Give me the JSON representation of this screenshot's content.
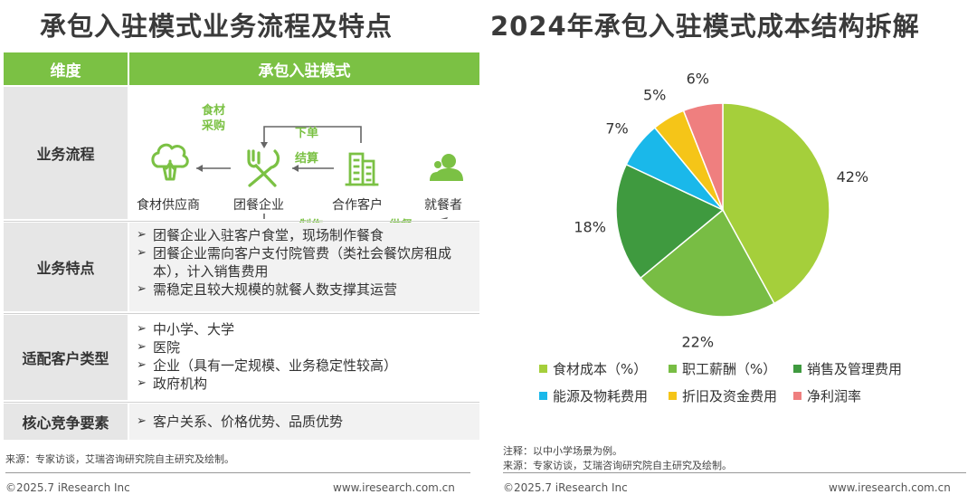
{
  "left_title": "承包入驻模式业务流程及特点",
  "right_title": "2024年承包入驻模式成本结构拆解",
  "table": {
    "header_dim": "维度",
    "header_mode": "承包入驻模式",
    "rows": [
      {
        "dim": "业务流程"
      },
      {
        "dim": "业务特点",
        "bullets": [
          "团餐企业入驻客户食堂，现场制作餐食",
          "团餐企业需向客户支付院管费（类社会餐饮房租成本），计入销售费用",
          "需稳定且较大规模的就餐人数支撑其运营"
        ]
      },
      {
        "dim": "适配客户类型",
        "bullets": [
          "中小学、大学",
          "医院",
          "企业（具有一定规模、业务稳定性较高）",
          "政府机构"
        ]
      },
      {
        "dim": "核心竞争要素",
        "bullets": [
          "客户关系、价格优势、品质优势"
        ]
      }
    ]
  },
  "flow": {
    "nodes": [
      "食材供应商",
      "团餐企业",
      "合作客户",
      "就餐者"
    ],
    "top_arrows": [
      "食材\n采购",
      "下单",
      "结算"
    ],
    "bottom_arrows": [
      "制作",
      "供餐"
    ],
    "icons": [
      "broccoli-icon",
      "fork-knife-icon",
      "building-icon",
      "person-icon"
    ]
  },
  "notes": {
    "left_source": "来源：专家访谈，艾瑞咨询研究院自主研究及绘制。",
    "right_note": "注释：以中小学场景为例。",
    "right_source": "来源：专家访谈，艾瑞咨询研究院自主研究及绘制。"
  },
  "footer": {
    "left_copyright": "©2025.7 iResearch Inc",
    "left_url": "www.iresearch.com.cn",
    "right_copyright": "©2025.7 iResearch Inc",
    "right_url": "www.iresearch.com.cn"
  },
  "chart_data": {
    "type": "pie",
    "title": "2024年承包入驻模式成本结构拆解",
    "unit": "%",
    "slices": [
      {
        "name": "食材成本（%）",
        "value": 42,
        "label": "42%",
        "color": "#a5cf3b"
      },
      {
        "name": "职工薪酬（%）",
        "value": 22,
        "label": "22%",
        "color": "#78bd44"
      },
      {
        "name": "销售及管理费用",
        "value": 18,
        "label": "18%",
        "color": "#3f9a3f"
      },
      {
        "name": "能源及物耗费用",
        "value": 7,
        "label": "7%",
        "color": "#1ab8ea"
      },
      {
        "name": "折旧及资金费用",
        "value": 5,
        "label": "5%",
        "color": "#f5c518"
      },
      {
        "name": "净利润率",
        "value": 6,
        "label": "6%",
        "color": "#ef7f7f"
      }
    ],
    "legend_position": "bottom",
    "start": "top",
    "direction": "clockwise"
  }
}
